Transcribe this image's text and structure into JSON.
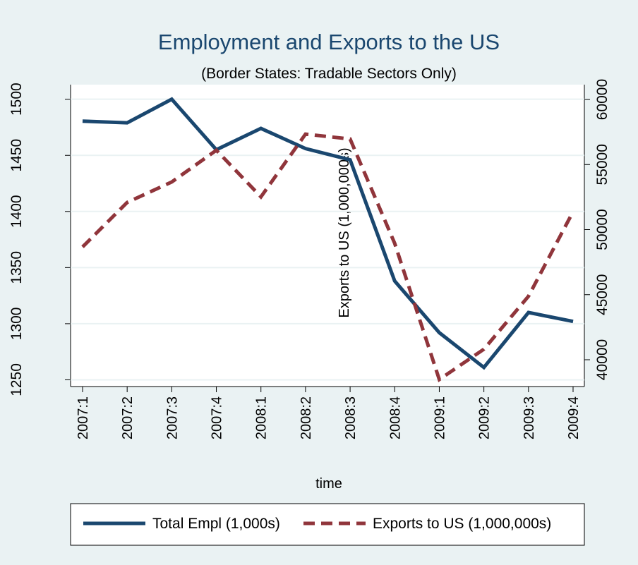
{
  "chart_data": {
    "type": "line",
    "title": "Employment and Exports to the US",
    "subtitle": "(Border States: Tradable Sectors Only)",
    "xlabel": "time",
    "y2label": "Exports to US (1,000,000s)",
    "categories": [
      "2007:1",
      "2007:2",
      "2007:3",
      "2007:4",
      "2008:1",
      "2008:2",
      "2008:3",
      "2008:4",
      "2009:1",
      "2009:2",
      "2009:3",
      "2009:4"
    ],
    "series": [
      {
        "name": "Total Empl (1,000s)",
        "color": "#1a476f",
        "dash": "solid",
        "values": [
          1480.5,
          1479,
          1500,
          1455,
          1474,
          1456,
          1446,
          1338,
          1292,
          1261,
          1310,
          1302
        ]
      },
      {
        "name": "Exports to US (1,000,000s)",
        "color": "#90353b",
        "dash": "dashed",
        "axis": "y2",
        "values": [
          48670,
          52090,
          53660,
          56100,
          52520,
          57340,
          56960,
          48940,
          38480,
          40810,
          44880,
          51380
        ]
      }
    ],
    "ylim": [
      1244,
      1513
    ],
    "yticks": [
      1250,
      1300,
      1350,
      1400,
      1450,
      1500
    ],
    "y2lim": [
      37940,
      61140
    ],
    "y2ticks": [
      40000,
      45000,
      50000,
      55000,
      60000
    ],
    "grid": true,
    "legend": "bottom"
  }
}
